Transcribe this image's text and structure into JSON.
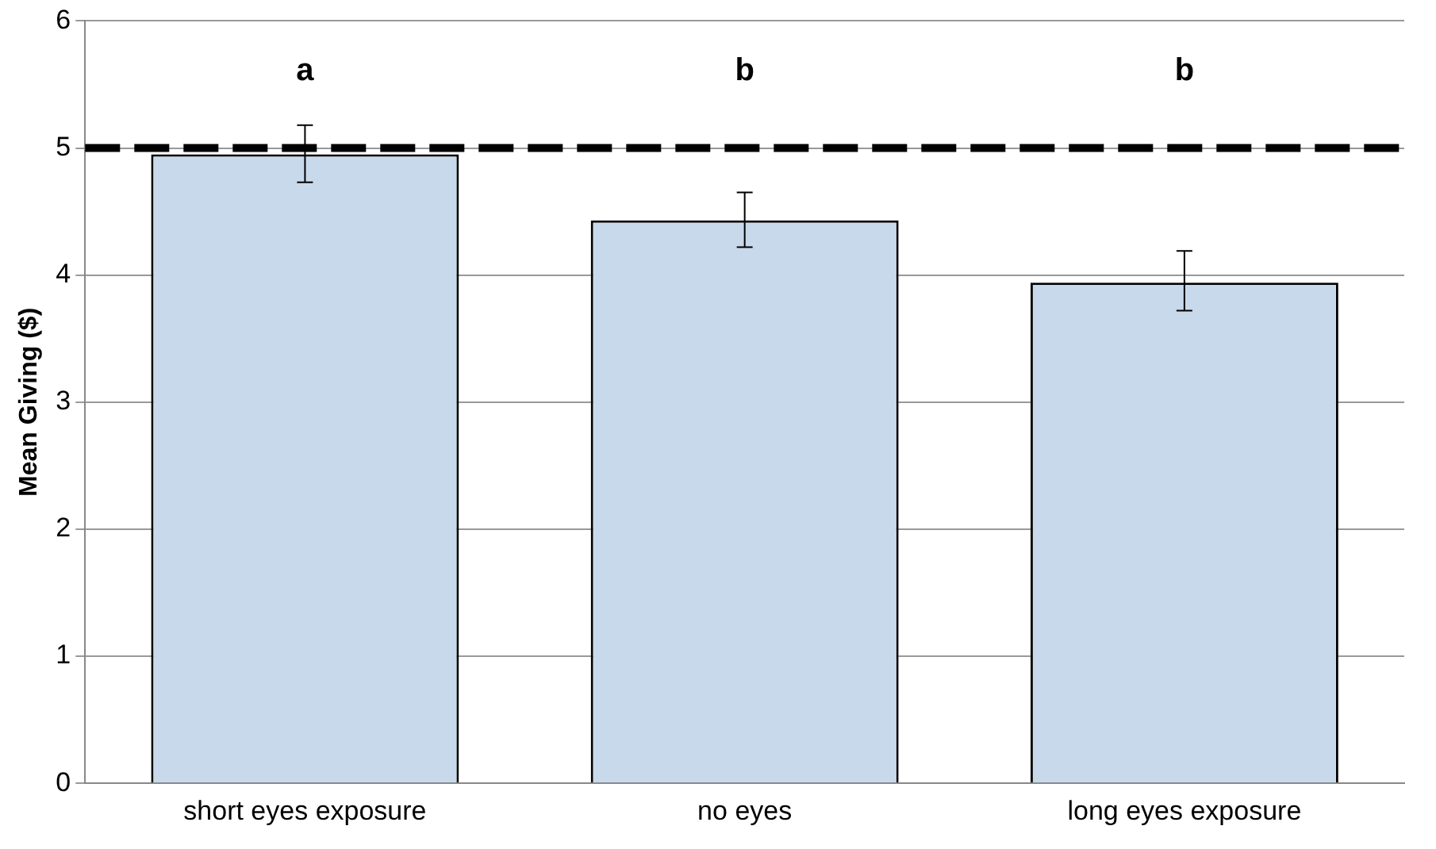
{
  "chart_data": {
    "type": "bar",
    "ylabel": "Mean Giving ($)",
    "categories": [
      "short eyes exposure",
      "no eyes",
      "long eyes exposure"
    ],
    "values": [
      4.95,
      4.43,
      3.94
    ],
    "color": "#c9d9ec",
    "errors": [
      [
        4.73,
        5.18
      ],
      [
        4.22,
        4.65
      ],
      [
        3.72,
        4.19
      ]
    ],
    "ylim": [
      0,
      6
    ],
    "yticks": [
      0,
      1,
      2,
      3,
      4,
      5,
      6
    ],
    "grid": "y",
    "legend": false,
    "ref_lines": [
      {
        "axis": "y",
        "value": 5,
        "color": "#000000",
        "line_style": "dashed"
      }
    ],
    "annotations": [
      "a",
      "b",
      "b"
    ]
  }
}
